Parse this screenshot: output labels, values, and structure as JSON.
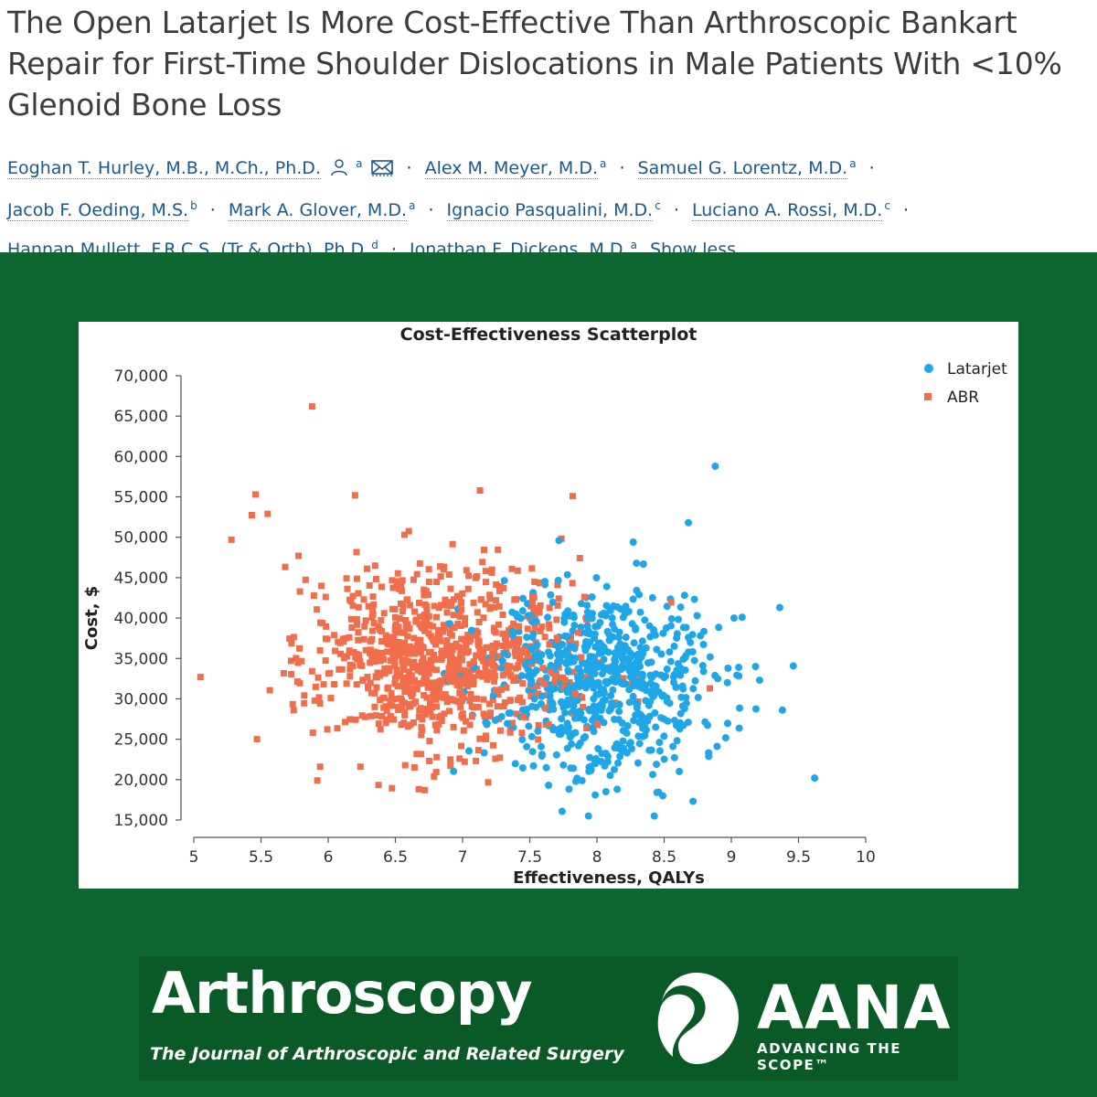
{
  "article": {
    "title": "The Open Latarjet Is More Cost-Effective Than Arthroscopic Bankart Repair for First-Time Shoulder Dislocations in Male Patients With <10% Glenoid Bone Loss",
    "authors": [
      {
        "name": "Eoghan T. Hurley, M.B., M.Ch., Ph.D.",
        "aff": "a"
      },
      {
        "name": "Alex M. Meyer, M.D.",
        "aff": "a"
      },
      {
        "name": "Samuel G. Lorentz, M.D.",
        "aff": "a"
      },
      {
        "name": "Jacob F. Oeding, M.S.",
        "aff": "b"
      },
      {
        "name": "Mark A. Glover, M.D.",
        "aff": "a"
      },
      {
        "name": "Ignacio Pasqualini, M.D.",
        "aff": "c"
      },
      {
        "name": "Luciano A. Rossi, M.D.",
        "aff": "c"
      },
      {
        "name": "Hannan Mullett, F.R.C.S. (Tr & Orth), Ph.D.",
        "aff": "d"
      },
      {
        "name": "Jonathan F. Dickens, M.D.",
        "aff": "a"
      }
    ],
    "show_less": "Show less",
    "separator": "·",
    "icons": {
      "corresponding": "person-icon",
      "email": "envelope-icon"
    }
  },
  "colors": {
    "header_bg": "#ffffff",
    "title_text": "#3c3c3c",
    "author_link": "#1a5a8a",
    "background_green": "#0e6630",
    "latarjet": "#1ea7e8",
    "abr": "#f26d4a"
  },
  "chart_data": {
    "type": "scatter",
    "title": "Cost-Effectiveness Scatterplot",
    "xlabel": "Effectiveness, QALYs",
    "ylabel": "Cost, $",
    "xlim": [
      5,
      10
    ],
    "ylim": [
      15000,
      70000
    ],
    "xticks": [
      "5",
      "5.5",
      "6",
      "6.5",
      "7",
      "7.5",
      "8",
      "8.5",
      "9",
      "9.5",
      "10"
    ],
    "yticks": [
      "15,000",
      "20,000",
      "25,000",
      "30,000",
      "35,000",
      "40,000",
      "45,000",
      "50,000",
      "55,000",
      "60,000",
      "65,000",
      "70,000"
    ],
    "grid": false,
    "legend_position": "top-right",
    "series": [
      {
        "name": "Latarjet",
        "marker": "circle",
        "color": "#1ea7e8",
        "center": {
          "x": 8.05,
          "y": 32500
        },
        "spread": {
          "x": 0.42,
          "y": 5800
        },
        "count": 700,
        "points": [
          [
            8.88,
            58800
          ],
          [
            9.62,
            20200
          ],
          [
            9.38,
            28600
          ],
          [
            9.36,
            41300
          ],
          [
            8.68,
            51800
          ],
          [
            8.27,
            49400
          ],
          [
            8.49,
            18000
          ],
          [
            8.15,
            18800
          ],
          [
            7.64,
            19300
          ],
          [
            9.21,
            32300
          ],
          [
            9.18,
            34000
          ],
          [
            9.08,
            40100
          ],
          [
            9.02,
            40000
          ]
        ]
      },
      {
        "name": "ABR",
        "marker": "square",
        "color": "#f26d4a",
        "center": {
          "x": 6.85,
          "y": 35000
        },
        "spread": {
          "x": 0.48,
          "y": 5600
        },
        "count": 900,
        "points": [
          [
            5.88,
            66200
          ],
          [
            5.28,
            49700
          ],
          [
            5.46,
            55300
          ],
          [
            5.55,
            52900
          ],
          [
            5.47,
            25000
          ],
          [
            6.2,
            55200
          ],
          [
            7.13,
            55800
          ],
          [
            7.82,
            55100
          ],
          [
            6.24,
            21600
          ],
          [
            6.72,
            18700
          ],
          [
            8.84,
            31300
          ]
        ]
      }
    ]
  },
  "footer": {
    "journal_name": "Arthroscopy",
    "journal_subtitle": "The Journal of Arthroscopic and Related Surgery",
    "society_name": "AANA",
    "society_tagline": "ADVANCING THE SCOPE™"
  }
}
